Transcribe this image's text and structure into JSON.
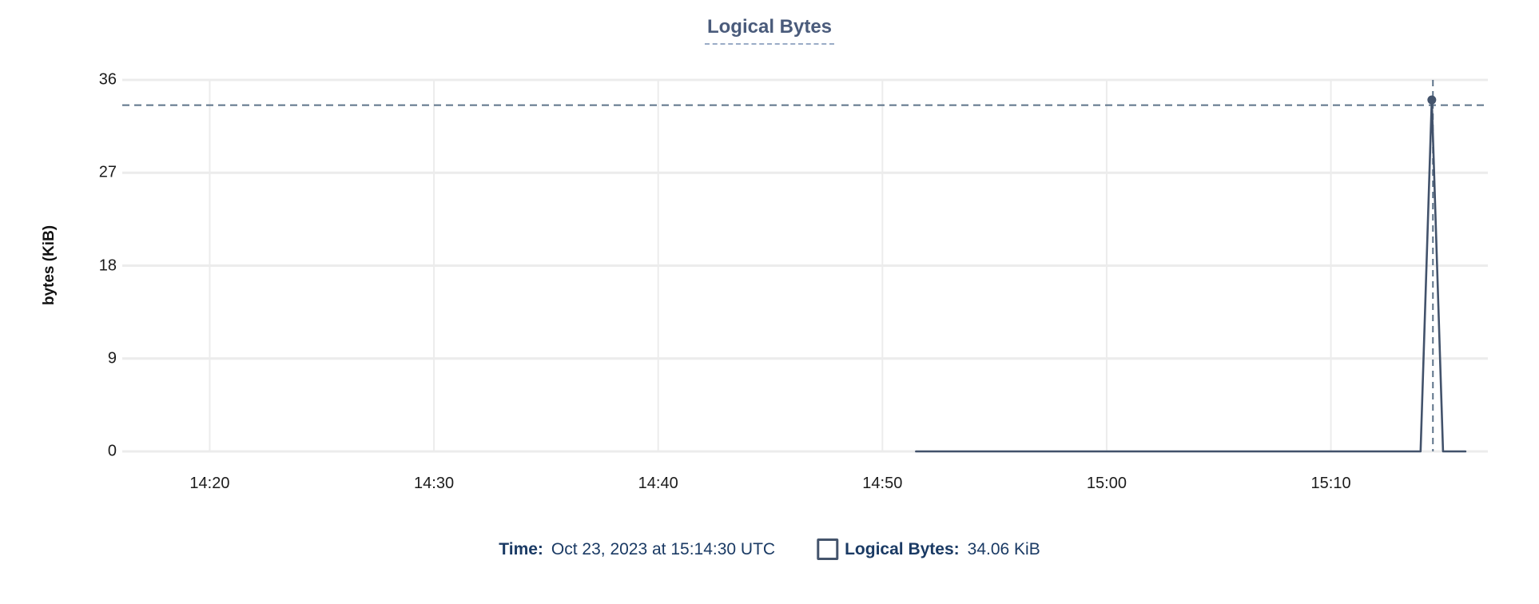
{
  "header": {
    "title": "Logical Bytes"
  },
  "colors": {
    "grid": "#ececec",
    "series_line": "#42526b",
    "marker_fill": "#44546c",
    "crosshair": "#5d7389",
    "title_text": "#4a5b7b",
    "title_underline": "#9aacc6",
    "axis_text": "#1c1c1c",
    "readout_text": "#1a3a64",
    "swatch_border": "#44546c"
  },
  "chart_data": {
    "type": "line",
    "title": "Logical Bytes",
    "xlabel": "",
    "ylabel": "bytes (KiB)",
    "ylim": [
      0,
      36
    ],
    "x_domain_minutes": [
      856.1,
      917.0
    ],
    "grid": true,
    "yticks": [
      {
        "value": 0,
        "label": "0"
      },
      {
        "value": 9,
        "label": "9"
      },
      {
        "value": 18,
        "label": "18"
      },
      {
        "value": 27,
        "label": "27"
      },
      {
        "value": 36,
        "label": "36"
      }
    ],
    "xticks": [
      {
        "minutes": 860,
        "label": "14:20"
      },
      {
        "minutes": 870,
        "label": "14:30"
      },
      {
        "minutes": 880,
        "label": "14:40"
      },
      {
        "minutes": 890,
        "label": "14:50"
      },
      {
        "minutes": 900,
        "label": "15:00"
      },
      {
        "minutes": 910,
        "label": "15:10"
      }
    ],
    "series": [
      {
        "name": "Logical Bytes",
        "points_min_kib": [
          [
            891.5,
            0
          ],
          [
            914.0,
            0
          ],
          [
            914.5,
            34.06
          ],
          [
            915.0,
            0
          ],
          [
            916.0,
            0
          ]
        ]
      }
    ],
    "marker": {
      "x_minutes": 914.5,
      "y_kib": 34.06
    },
    "crosshair": {
      "x_minutes": 914.55,
      "y_kib": 33.55
    }
  },
  "readout": {
    "time_label": "Time:",
    "time_value": "Oct 23, 2023 at 15:14:30 UTC",
    "series_label": "Logical Bytes:",
    "series_value": "34.06 KiB"
  }
}
